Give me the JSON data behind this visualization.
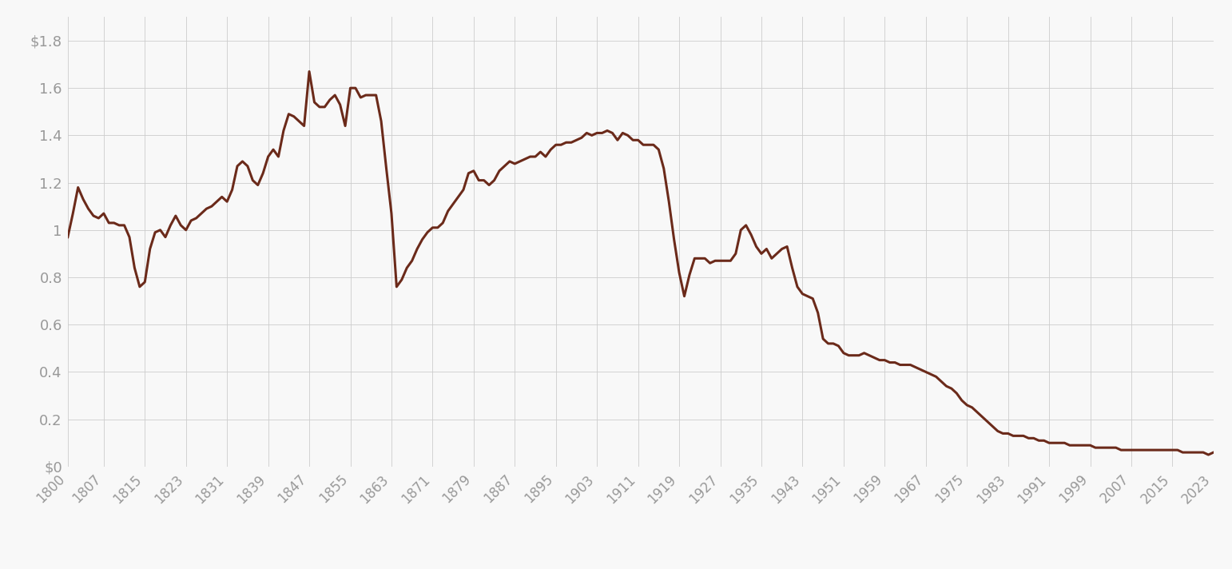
{
  "line_color": "#6B2A1A",
  "line_width": 2.2,
  "background_color": "#f8f8f8",
  "grid_color": "#cccccc",
  "text_color": "#999999",
  "ylim": [
    0,
    1.9
  ],
  "yticks": [
    0,
    0.2,
    0.4,
    0.6,
    0.8,
    1.0,
    1.2,
    1.4,
    1.6,
    1.8
  ],
  "ytick_labels": [
    "$0",
    "0.2",
    "0.4",
    "0.6",
    "0.8",
    "1",
    "1.2",
    "1.4",
    "1.6",
    "$1.8"
  ],
  "xticks": [
    1800,
    1807,
    1815,
    1823,
    1831,
    1839,
    1847,
    1855,
    1863,
    1871,
    1879,
    1887,
    1895,
    1903,
    1911,
    1919,
    1927,
    1935,
    1943,
    1951,
    1959,
    1967,
    1975,
    1983,
    1991,
    1999,
    2007,
    2015,
    2023
  ],
  "years": [
    1800,
    1801,
    1802,
    1803,
    1804,
    1805,
    1806,
    1807,
    1808,
    1809,
    1810,
    1811,
    1812,
    1813,
    1814,
    1815,
    1816,
    1817,
    1818,
    1819,
    1820,
    1821,
    1822,
    1823,
    1824,
    1825,
    1826,
    1827,
    1828,
    1829,
    1830,
    1831,
    1832,
    1833,
    1834,
    1835,
    1836,
    1837,
    1838,
    1839,
    1840,
    1841,
    1842,
    1843,
    1844,
    1845,
    1846,
    1847,
    1848,
    1849,
    1850,
    1851,
    1852,
    1853,
    1854,
    1855,
    1856,
    1857,
    1858,
    1859,
    1860,
    1861,
    1862,
    1863,
    1864,
    1865,
    1866,
    1867,
    1868,
    1869,
    1870,
    1871,
    1872,
    1873,
    1874,
    1875,
    1876,
    1877,
    1878,
    1879,
    1880,
    1881,
    1882,
    1883,
    1884,
    1885,
    1886,
    1887,
    1888,
    1889,
    1890,
    1891,
    1892,
    1893,
    1894,
    1895,
    1896,
    1897,
    1898,
    1899,
    1900,
    1901,
    1902,
    1903,
    1904,
    1905,
    1906,
    1907,
    1908,
    1909,
    1910,
    1911,
    1912,
    1913,
    1914,
    1915,
    1916,
    1917,
    1918,
    1919,
    1920,
    1921,
    1922,
    1923,
    1924,
    1925,
    1926,
    1927,
    1928,
    1929,
    1930,
    1931,
    1932,
    1933,
    1934,
    1935,
    1936,
    1937,
    1938,
    1939,
    1940,
    1941,
    1942,
    1943,
    1944,
    1945,
    1946,
    1947,
    1948,
    1949,
    1950,
    1951,
    1952,
    1953,
    1954,
    1955,
    1956,
    1957,
    1958,
    1959,
    1960,
    1961,
    1962,
    1963,
    1964,
    1965,
    1966,
    1967,
    1968,
    1969,
    1970,
    1971,
    1972,
    1973,
    1974,
    1975,
    1976,
    1977,
    1978,
    1979,
    1980,
    1981,
    1982,
    1983,
    1984,
    1985,
    1986,
    1987,
    1988,
    1989,
    1990,
    1991,
    1992,
    1993,
    1994,
    1995,
    1996,
    1997,
    1998,
    1999,
    2000,
    2001,
    2002,
    2003,
    2004,
    2005,
    2006,
    2007,
    2008,
    2009,
    2010,
    2011,
    2012,
    2013,
    2014,
    2015,
    2016,
    2017,
    2018,
    2019,
    2020,
    2021,
    2022,
    2023
  ],
  "values": [
    0.97,
    1.07,
    1.18,
    1.13,
    1.09,
    1.06,
    1.05,
    1.07,
    1.03,
    1.03,
    1.02,
    1.02,
    0.97,
    0.84,
    0.76,
    0.78,
    0.92,
    0.99,
    1.0,
    0.97,
    1.02,
    1.06,
    1.02,
    1.0,
    1.04,
    1.05,
    1.07,
    1.09,
    1.1,
    1.12,
    1.14,
    1.12,
    1.17,
    1.27,
    1.29,
    1.27,
    1.21,
    1.19,
    1.24,
    1.31,
    1.34,
    1.31,
    1.42,
    1.49,
    1.48,
    1.46,
    1.44,
    1.67,
    1.54,
    1.52,
    1.52,
    1.55,
    1.57,
    1.53,
    1.44,
    1.6,
    1.6,
    1.56,
    1.57,
    1.57,
    1.57,
    1.46,
    1.26,
    1.07,
    0.76,
    0.79,
    0.84,
    0.87,
    0.92,
    0.96,
    0.99,
    1.01,
    1.01,
    1.03,
    1.08,
    1.11,
    1.14,
    1.17,
    1.24,
    1.25,
    1.21,
    1.21,
    1.19,
    1.21,
    1.25,
    1.27,
    1.29,
    1.28,
    1.29,
    1.3,
    1.31,
    1.31,
    1.33,
    1.31,
    1.34,
    1.36,
    1.36,
    1.37,
    1.37,
    1.38,
    1.39,
    1.41,
    1.4,
    1.41,
    1.41,
    1.42,
    1.41,
    1.38,
    1.41,
    1.4,
    1.38,
    1.38,
    1.36,
    1.36,
    1.36,
    1.34,
    1.26,
    1.12,
    0.96,
    0.82,
    0.72,
    0.81,
    0.88,
    0.88,
    0.88,
    0.86,
    0.87,
    0.87,
    0.87,
    0.87,
    0.9,
    1.0,
    1.02,
    0.98,
    0.93,
    0.9,
    0.92,
    0.88,
    0.9,
    0.92,
    0.93,
    0.84,
    0.76,
    0.73,
    0.72,
    0.71,
    0.65,
    0.54,
    0.52,
    0.52,
    0.51,
    0.48,
    0.47,
    0.47,
    0.47,
    0.48,
    0.47,
    0.46,
    0.45,
    0.45,
    0.44,
    0.44,
    0.43,
    0.43,
    0.43,
    0.42,
    0.41,
    0.4,
    0.39,
    0.38,
    0.36,
    0.34,
    0.33,
    0.31,
    0.28,
    0.26,
    0.25,
    0.23,
    0.21,
    0.19,
    0.17,
    0.15,
    0.14,
    0.14,
    0.13,
    0.13,
    0.13,
    0.12,
    0.12,
    0.11,
    0.11,
    0.1,
    0.1,
    0.1,
    0.1,
    0.09,
    0.09,
    0.09,
    0.09,
    0.09,
    0.08,
    0.08,
    0.08,
    0.08,
    0.08,
    0.07,
    0.07,
    0.07,
    0.07,
    0.07,
    0.07,
    0.07,
    0.07,
    0.07,
    0.07,
    0.07,
    0.07,
    0.06,
    0.06,
    0.06,
    0.06,
    0.06,
    0.05,
    0.06
  ]
}
